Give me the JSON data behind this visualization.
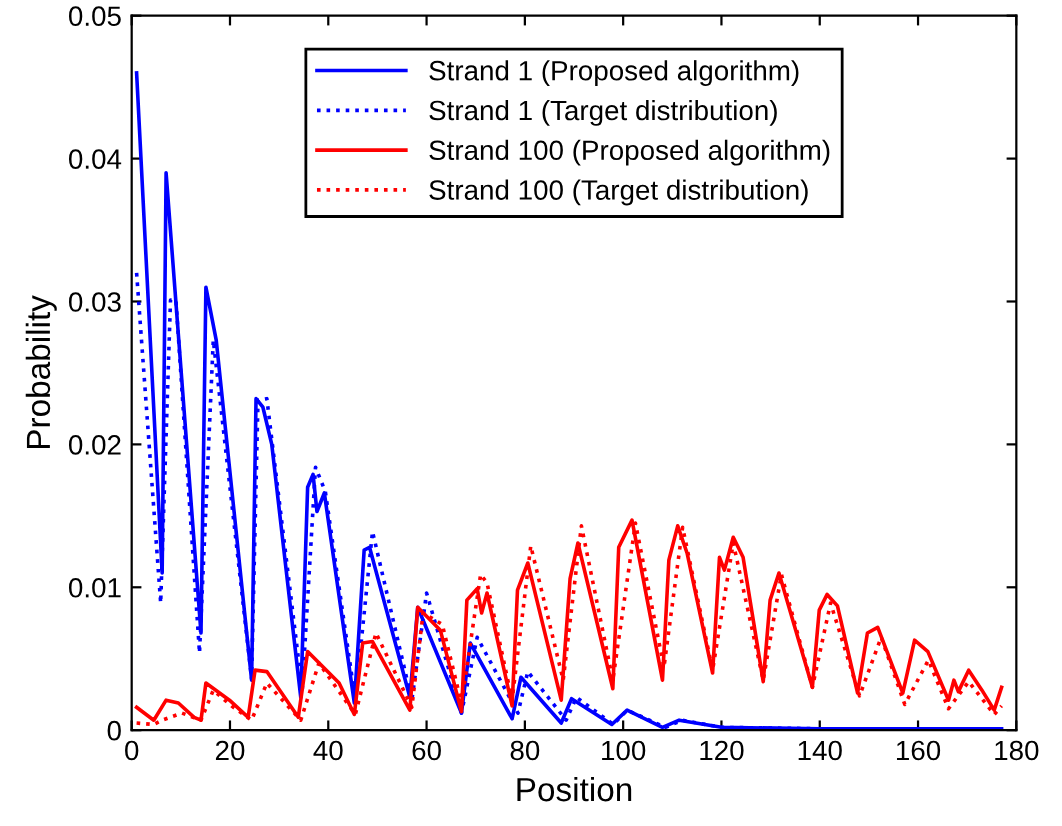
{
  "chart_data": {
    "type": "line",
    "xlabel": "Position",
    "ylabel": "Probability",
    "xlim": [
      0,
      180
    ],
    "xticks": [
      0,
      20,
      40,
      60,
      80,
      100,
      120,
      140,
      160,
      180
    ],
    "ylim": [
      0,
      0.05
    ],
    "yticks": [
      0,
      0.01,
      0.02,
      0.03,
      0.04,
      0.05
    ],
    "grid": false,
    "legend": "top",
    "marker": "none",
    "series": [
      {
        "name": "Strand 1 (Proposed algorithm)",
        "color": "#0000ff",
        "line_style": "solid",
        "x": [
          1,
          6.2,
          7,
          14.1,
          15.1,
          17.2,
          24.4,
          25.3,
          26.7,
          28.5,
          34.4,
          35.8,
          36.9,
          37.7,
          39.2,
          45.3,
          47.3,
          48.4,
          56.6,
          58.2,
          67.1,
          68.9,
          77.4,
          79.2,
          87.4,
          89.5,
          97.7,
          100.8,
          108,
          111.4,
          120,
          140,
          160,
          177
        ],
        "values": [
          0.046,
          0.011,
          0.039,
          0.0068,
          0.031,
          0.0273,
          0.0035,
          0.0232,
          0.0226,
          0.02,
          0.0023,
          0.017,
          0.0179,
          0.0153,
          0.0166,
          0.0019,
          0.0126,
          0.0128,
          0.0023,
          0.0086,
          0.0012,
          0.0061,
          0.0008,
          0.0037,
          0.0005,
          0.0022,
          0.0004,
          0.0014,
          0.0002,
          0.0007,
          0.0002,
          0.0001,
          0.0001,
          0.0001
        ]
      },
      {
        "name": "Strand 1 (Target distribution)",
        "color": "#0000ff",
        "line_style": "dotted",
        "x": [
          1,
          5.9,
          7.9,
          9,
          13.8,
          16.6,
          24.4,
          25.7,
          27.5,
          34.7,
          37.4,
          39.4,
          45.5,
          49,
          57,
          60,
          67.1,
          70.3,
          78.6,
          80.6,
          88.4,
          90.5,
          98,
          100.8,
          108.6,
          112,
          120,
          140,
          160,
          177
        ],
        "values": [
          0.032,
          0.0089,
          0.0301,
          0.0301,
          0.0054,
          0.0273,
          0.0036,
          0.0231,
          0.0232,
          0.0028,
          0.0184,
          0.0167,
          0.0021,
          0.0139,
          0.0021,
          0.0096,
          0.0012,
          0.0065,
          0.0012,
          0.0041,
          0.0007,
          0.0023,
          0.0004,
          0.0014,
          0.0002,
          0.0007,
          0.0002,
          0.0001,
          0.0001,
          0.0001
        ]
      },
      {
        "name": "Strand 100 (Proposed algorithm)",
        "color": "#ff0000",
        "line_style": "solid",
        "x": [
          1,
          4.5,
          7,
          9.5,
          12.7,
          14.1,
          15.1,
          19.9,
          23.7,
          25.1,
          27.5,
          33.9,
          35.8,
          42.2,
          45.3,
          47,
          49,
          56.6,
          58.2,
          62.8,
          67.1,
          68.2,
          70.3,
          71.2,
          72.3,
          77.4,
          78.5,
          80.6,
          87.4,
          89.2,
          90.8,
          97.9,
          99.1,
          101.8,
          108,
          109.3,
          111.1,
          113,
          118.2,
          119.6,
          120.6,
          122.4,
          124.4,
          128.5,
          129.9,
          131.7,
          138.5,
          139.9,
          141.5,
          143.6,
          147.7,
          149.7,
          151.8,
          156.9,
          159.3,
          162,
          166.2,
          167.3,
          168.2,
          170.3,
          173,
          175.5,
          177
        ],
        "values": [
          0.0016,
          0.0007,
          0.0021,
          0.0019,
          0.0009,
          0.0007,
          0.0033,
          0.0021,
          0.0009,
          0.0042,
          0.0041,
          0.0009,
          0.0055,
          0.0033,
          0.0011,
          0.0061,
          0.0062,
          0.0014,
          0.0086,
          0.007,
          0.0013,
          0.0091,
          0.0099,
          0.0082,
          0.0096,
          0.0017,
          0.0098,
          0.0117,
          0.0021,
          0.0106,
          0.0131,
          0.0029,
          0.0128,
          0.0147,
          0.0035,
          0.0119,
          0.0143,
          0.0124,
          0.004,
          0.0121,
          0.0112,
          0.0135,
          0.0121,
          0.0034,
          0.0091,
          0.011,
          0.003,
          0.0084,
          0.0095,
          0.0087,
          0.0026,
          0.0068,
          0.0072,
          0.0026,
          0.0063,
          0.0055,
          0.0021,
          0.0035,
          0.0027,
          0.0042,
          0.0028,
          0.0014,
          0.003
        ]
      },
      {
        "name": "Strand 100 (Target distribution)",
        "color": "#ff0000",
        "line_style": "dotted",
        "x": [
          1,
          4.5,
          6.2,
          10.2,
          14.1,
          16.6,
          20.3,
          24.4,
          27.5,
          34.4,
          38.1,
          45.5,
          49.7,
          57,
          59.3,
          63.2,
          67.1,
          71,
          72.3,
          77.4,
          81.2,
          87.8,
          91.5,
          97.9,
          102.5,
          108.3,
          112.1,
          118.2,
          122.4,
          128.5,
          132.2,
          138.5,
          142.2,
          148.1,
          152.5,
          157.3,
          162.1,
          166.2,
          170.3,
          175.5,
          177
        ],
        "values": [
          0.0005,
          0.0004,
          0.0007,
          0.0012,
          0.0007,
          0.0028,
          0.0017,
          0.0007,
          0.0033,
          0.0007,
          0.0047,
          0.0011,
          0.0068,
          0.0016,
          0.0082,
          0.0074,
          0.0019,
          0.0109,
          0.0103,
          0.0021,
          0.0129,
          0.0035,
          0.0143,
          0.0035,
          0.0145,
          0.0044,
          0.0142,
          0.0042,
          0.0131,
          0.0035,
          0.0109,
          0.003,
          0.0089,
          0.0024,
          0.0065,
          0.0018,
          0.0049,
          0.0015,
          0.0034,
          0.0011,
          0.0017
        ]
      }
    ]
  }
}
